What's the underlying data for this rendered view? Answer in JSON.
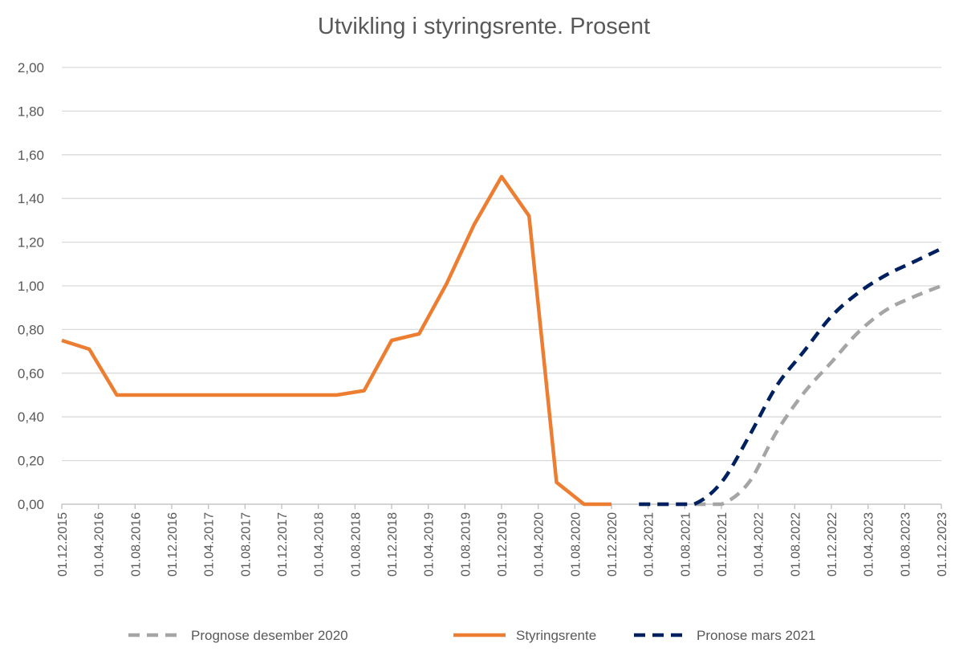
{
  "chart_data": {
    "type": "line",
    "title": "Utvikling i styringsrente. Prosent",
    "xlabel": "",
    "ylabel": "",
    "ylim": [
      0,
      2.0
    ],
    "y_ticks": [
      "0,00",
      "0,20",
      "0,40",
      "0,60",
      "0,80",
      "1,00",
      "1,20",
      "1,40",
      "1,60",
      "1,80",
      "2,00"
    ],
    "x_tick_labels": [
      "01.12.2015",
      "01.04.2016",
      "01.08.2016",
      "01.12.2016",
      "01.04.2017",
      "01.08.2017",
      "01.12.2017",
      "01.04.2018",
      "01.08.2018",
      "01.12.2018",
      "01.04.2019",
      "01.08.2019",
      "01.12.2019",
      "01.04.2020",
      "01.08.2020",
      "01.12.2020",
      "01.04.2021",
      "01.08.2021",
      "01.12.2021",
      "01.04.2022",
      "01.08.2022",
      "01.12.2022",
      "01.04.2023",
      "01.08.2023",
      "01.12.2023"
    ],
    "x_unit": "months since 01.12.2015",
    "grid": true,
    "legend_position": "bottom",
    "series": [
      {
        "name": "Prognose  desember 2020",
        "color": "#a5a5a5",
        "style": "dashed",
        "x": [
          63,
          66,
          69,
          72,
          75,
          78,
          81,
          84,
          87,
          90,
          93,
          96
        ],
        "values": [
          0,
          0,
          0,
          0,
          0.1,
          0.33,
          0.51,
          0.65,
          0.79,
          0.89,
          0.95,
          1.0
        ]
      },
      {
        "name": "Styringsrente",
        "color": "#ed7d31",
        "style": "solid",
        "x": [
          0,
          3,
          6,
          9,
          12,
          15,
          18,
          21,
          24,
          27,
          30,
          33,
          36,
          39,
          42,
          45,
          48,
          51,
          54,
          57,
          60
        ],
        "values": [
          0.75,
          0.71,
          0.5,
          0.5,
          0.5,
          0.5,
          0.5,
          0.5,
          0.5,
          0.5,
          0.5,
          0.52,
          0.75,
          0.78,
          1.01,
          1.28,
          1.5,
          1.32,
          0.1,
          0,
          0
        ]
      },
      {
        "name": "Pronose mars 2021",
        "color": "#002060",
        "style": "dashed",
        "x": [
          63,
          66,
          69,
          72,
          75,
          78,
          81,
          84,
          87,
          90,
          93,
          96
        ],
        "values": [
          0,
          0,
          0,
          0.1,
          0.31,
          0.54,
          0.7,
          0.86,
          0.97,
          1.05,
          1.11,
          1.17
        ]
      }
    ]
  }
}
